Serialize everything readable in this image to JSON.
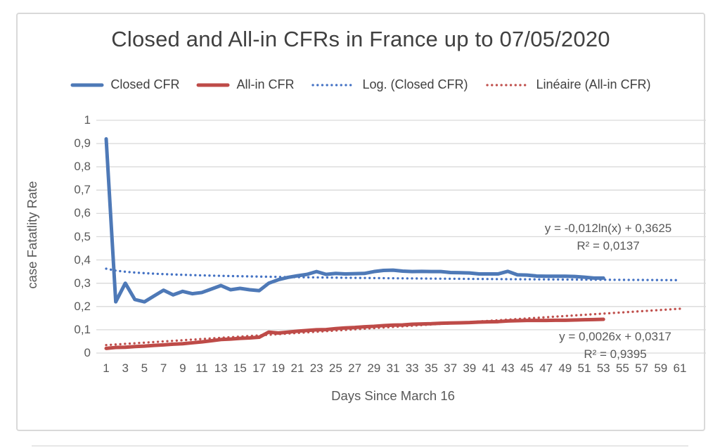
{
  "colors": {
    "closed": "#4E79B7",
    "all_in": "#BE4B48",
    "trend_closed": "#4472C4",
    "trend_all_in": "#C0504D",
    "gridline": "#D9D9D9",
    "tick_text": "#595959",
    "title_text": "#404040",
    "border": "#D9D9D9"
  },
  "chart_data": {
    "type": "line",
    "title": "Closed and All-in CFRs in France up to 07/05/2020",
    "xlabel": "Days Since March 16",
    "ylabel": "case Fatatlity Rate",
    "xlim": [
      1,
      61
    ],
    "ylim": [
      0,
      1
    ],
    "grid": "horizontal",
    "legend_position": "top",
    "x_ticks": [
      1,
      3,
      5,
      7,
      9,
      11,
      13,
      15,
      17,
      19,
      21,
      23,
      25,
      27,
      29,
      31,
      33,
      35,
      37,
      39,
      41,
      43,
      45,
      47,
      49,
      51,
      53,
      55,
      57,
      59,
      61
    ],
    "y_ticks": [
      {
        "v": 0.0,
        "label": "0"
      },
      {
        "v": 0.1,
        "label": "0,1"
      },
      {
        "v": 0.2,
        "label": "0,2"
      },
      {
        "v": 0.3,
        "label": "0,3"
      },
      {
        "v": 0.4,
        "label": "0,4"
      },
      {
        "v": 0.5,
        "label": "0,5"
      },
      {
        "v": 0.6,
        "label": "0,6"
      },
      {
        "v": 0.7,
        "label": "0,7"
      },
      {
        "v": 0.8,
        "label": "0,8"
      },
      {
        "v": 0.9,
        "label": "0,9"
      },
      {
        "v": 1.0,
        "label": "1"
      }
    ],
    "series": [
      {
        "name": "Closed CFR",
        "style": "solid",
        "color_key": "closed",
        "x_start": 1,
        "values": [
          0.92,
          0.22,
          0.3,
          0.23,
          0.22,
          0.245,
          0.27,
          0.25,
          0.265,
          0.255,
          0.26,
          0.275,
          0.29,
          0.272,
          0.278,
          0.272,
          0.268,
          0.3,
          0.315,
          0.325,
          0.332,
          0.338,
          0.35,
          0.338,
          0.342,
          0.34,
          0.341,
          0.342,
          0.35,
          0.355,
          0.356,
          0.352,
          0.35,
          0.351,
          0.35,
          0.35,
          0.346,
          0.345,
          0.344,
          0.34,
          0.34,
          0.34,
          0.351,
          0.336,
          0.335,
          0.331,
          0.33,
          0.33,
          0.33,
          0.329,
          0.326,
          0.322,
          0.322
        ]
      },
      {
        "name": "All-in CFR",
        "style": "solid",
        "color_key": "all_in",
        "x_start": 1,
        "values": [
          0.02,
          0.024,
          0.025,
          0.028,
          0.03,
          0.033,
          0.035,
          0.038,
          0.04,
          0.044,
          0.048,
          0.053,
          0.058,
          0.06,
          0.063,
          0.065,
          0.068,
          0.09,
          0.086,
          0.09,
          0.094,
          0.097,
          0.1,
          0.101,
          0.105,
          0.108,
          0.11,
          0.113,
          0.115,
          0.118,
          0.12,
          0.121,
          0.124,
          0.125,
          0.126,
          0.128,
          0.129,
          0.13,
          0.131,
          0.133,
          0.134,
          0.135,
          0.138,
          0.139,
          0.14,
          0.14,
          0.14,
          0.141,
          0.141,
          0.142,
          0.143,
          0.144,
          0.145
        ]
      }
    ],
    "trendlines": [
      {
        "name": "Log. (Closed CFR)",
        "kind": "log",
        "a": -0.012,
        "b": 0.3625,
        "x_range": [
          1,
          61
        ],
        "style": "dotted",
        "color_key": "trend_closed",
        "equation": "y = -0,012ln(x) + 0,3625",
        "r2": "R² = 0,0137"
      },
      {
        "name": "Linéaire (All-in CFR)",
        "kind": "linear",
        "m": 0.0026,
        "b": 0.0317,
        "x_range": [
          1,
          61
        ],
        "style": "dotted",
        "color_key": "trend_all_in",
        "equation": "y = 0,0026x + 0,0317",
        "r2": "R² = 0,9395"
      }
    ],
    "annotations": [
      {
        "line1": "y = -0,012ln(x) + 0,3625",
        "line2": "R² = 0,0137"
      },
      {
        "line1": "y = 0,0026x + 0,0317",
        "line2": "R² = 0,9395"
      }
    ]
  },
  "legend": [
    {
      "label": "Closed CFR",
      "style": "solid",
      "color_key": "closed"
    },
    {
      "label": "All-in CFR",
      "style": "solid",
      "color_key": "all_in"
    },
    {
      "label": "Log. (Closed CFR)",
      "style": "dotted",
      "color_key": "trend_closed"
    },
    {
      "label": "Linéaire (All-in CFR)",
      "style": "dotted",
      "color_key": "trend_all_in"
    }
  ]
}
